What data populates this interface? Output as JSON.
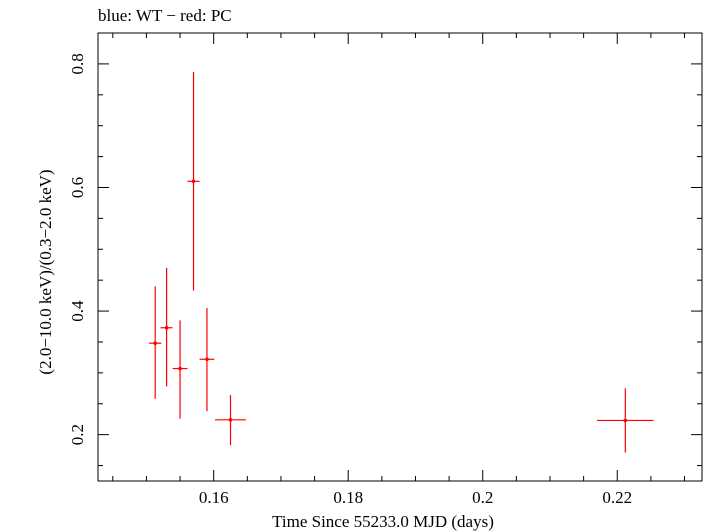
{
  "chart_data": {
    "type": "scatter",
    "title": "blue: WT − red: PC",
    "xlabel": "Time Since 55233.0 MJD (days)",
    "ylabel": "(2.0−10.0 keV)/(0.3−2.0 keV)",
    "xlim": [
      0.1428,
      0.2326
    ],
    "ylim": [
      0.125,
      0.85
    ],
    "x_ticks": [
      0.16,
      0.18,
      0.2,
      0.22
    ],
    "x_tick_labels": [
      "0.16",
      "0.18",
      "0.2",
      "0.22"
    ],
    "x_minor_step": 0.005,
    "y_ticks": [
      0.2,
      0.4,
      0.6,
      0.8
    ],
    "y_tick_labels": [
      "0.2",
      "0.4",
      "0.6",
      "0.8"
    ],
    "y_minor_step": 0.05,
    "grid": false,
    "series": [
      {
        "name": "PC",
        "color": "#ff0000",
        "points": [
          {
            "x": 0.1513,
            "xerr": 0.0009,
            "y": 0.348,
            "ylo": 0.258,
            "yhi": 0.44
          },
          {
            "x": 0.153,
            "xerr": 0.0009,
            "y": 0.373,
            "ylo": 0.278,
            "yhi": 0.47
          },
          {
            "x": 0.155,
            "xerr": 0.0011,
            "y": 0.307,
            "ylo": 0.226,
            "yhi": 0.385
          },
          {
            "x": 0.157,
            "xerr": 0.0009,
            "y": 0.61,
            "ylo": 0.433,
            "yhi": 0.787
          },
          {
            "x": 0.159,
            "xerr": 0.0011,
            "y": 0.322,
            "ylo": 0.238,
            "yhi": 0.405
          },
          {
            "x": 0.1625,
            "xerr": 0.0023,
            "y": 0.224,
            "ylo": 0.183,
            "yhi": 0.264
          },
          {
            "x": 0.2212,
            "xerr": 0.0042,
            "y": 0.223,
            "ylo": 0.171,
            "yhi": 0.275
          }
        ]
      },
      {
        "name": "WT",
        "color": "#0000ff",
        "points": []
      }
    ]
  }
}
